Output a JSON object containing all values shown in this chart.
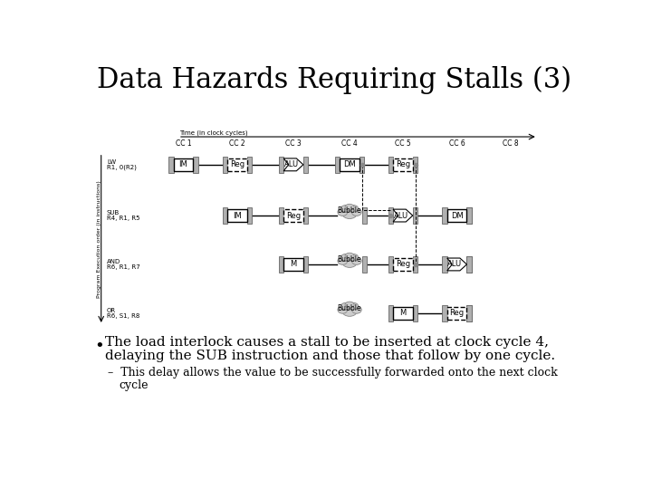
{
  "title": "Data Hazards Requiring Stalls (3)",
  "title_fontsize": 22,
  "bg_color": "#ffffff",
  "bullet_text_line1": "The load interlock causes a stall to be inserted at clock cycle 4,",
  "bullet_text_line2": "delaying the SUB instruction and those that follow by one cycle.",
  "sub_bullet_text_line1": "This delay allows the value to be successfully forwarded onto the next clock",
  "sub_bullet_text_line2": "cycle",
  "instructions": [
    "R1, 0(R2)",
    "R4, R1, R5",
    "R6, R1, R7",
    "R6, S1, R8"
  ],
  "instr_prefix": [
    "LW",
    "SUB",
    "AND",
    "OR"
  ],
  "cc_labels": [
    "CC 1",
    "CC 2",
    "CC 3",
    "CC 4",
    "CC 5",
    "CC 6",
    "CC 8"
  ],
  "time_label": "Time (in clock cycles)"
}
